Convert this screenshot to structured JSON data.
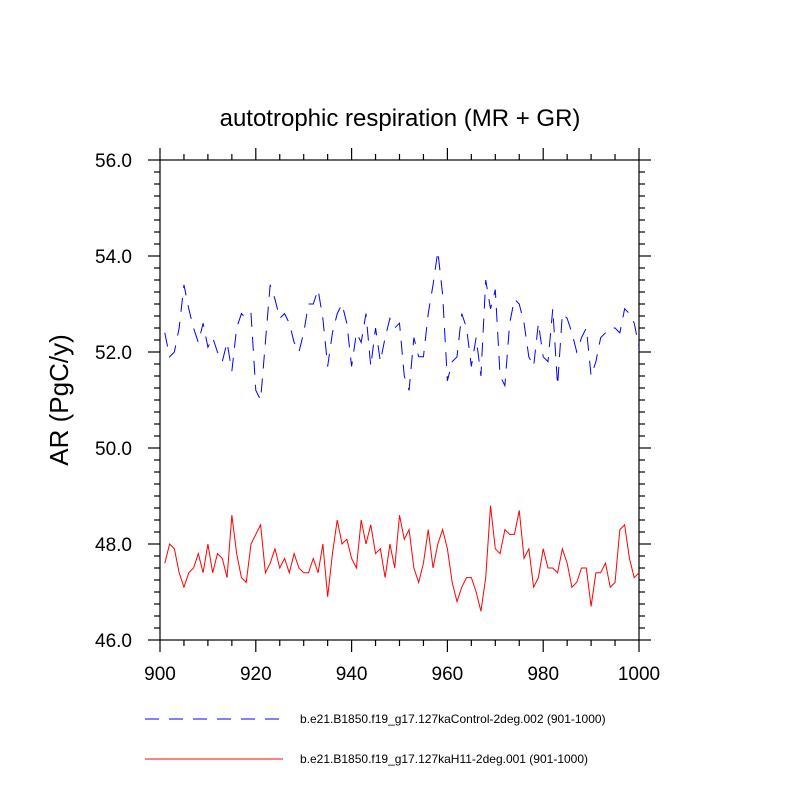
{
  "chart_data": {
    "type": "line",
    "title": "autotrophic respiration (MR + GR)",
    "xlabel": "",
    "ylabel": "AR  (PgC/y)",
    "xlim": [
      900,
      1000
    ],
    "ylim": [
      46.0,
      56.0
    ],
    "x_ticks": [
      900,
      920,
      940,
      960,
      980,
      1000
    ],
    "y_ticks": [
      46.0,
      48.0,
      50.0,
      52.0,
      54.0,
      56.0
    ],
    "x_tick_labels": [
      "900",
      "920",
      "940",
      "960",
      "980",
      "1000"
    ],
    "y_tick_labels": [
      "46.0",
      "48.0",
      "50.0",
      "52.0",
      "54.0",
      "56.0"
    ],
    "legend_position": "bottom",
    "x_start": 901,
    "series": [
      {
        "name": "b.e21.B1850.f19_g17.127kaControl-2deg.002 (901-1000)",
        "color": "#0000ff",
        "style": "dashed",
        "values": [
          52.4,
          51.9,
          52.0,
          52.5,
          53.4,
          52.9,
          52.5,
          52.2,
          52.6,
          52.1,
          52.3,
          52.0,
          51.8,
          52.2,
          51.6,
          52.5,
          52.8,
          52.7,
          52.8,
          51.2,
          51.0,
          52.2,
          53.4,
          53.1,
          52.7,
          52.8,
          52.6,
          52.2,
          52.0,
          52.4,
          53.0,
          53.0,
          53.3,
          52.7,
          51.7,
          52.4,
          52.8,
          53.0,
          52.6,
          51.7,
          52.4,
          52.2,
          52.8,
          51.7,
          52.5,
          51.8,
          52.3,
          52.7,
          52.5,
          52.6,
          51.5,
          51.2,
          52.3,
          51.9,
          51.9,
          52.8,
          53.4,
          54.1,
          53.2,
          51.4,
          51.8,
          51.9,
          52.8,
          52.5,
          51.7,
          52.3,
          51.5,
          53.5,
          52.9,
          53.3,
          51.5,
          51.3,
          52.6,
          53.1,
          53.0,
          52.6,
          51.9,
          51.7,
          52.6,
          51.9,
          51.8,
          52.9,
          51.3,
          52.8,
          52.7,
          52.4,
          52.0,
          52.3,
          52.5,
          51.5,
          51.8,
          52.3,
          52.4,
          52.5,
          52.5,
          52.4,
          52.9,
          52.8,
          52.6,
          52.1
        ]
      },
      {
        "name": "b.e21.B1850.f19_g17.127kaH11-2deg.001 (901-1000)",
        "color": "#ff0000",
        "style": "solid",
        "values": [
          47.6,
          48.0,
          47.9,
          47.4,
          47.1,
          47.4,
          47.5,
          47.8,
          47.4,
          48.0,
          47.4,
          47.8,
          47.7,
          47.3,
          48.6,
          47.8,
          47.3,
          47.2,
          48.0,
          48.2,
          48.4,
          47.4,
          47.6,
          47.9,
          47.5,
          47.7,
          47.4,
          47.8,
          47.5,
          47.4,
          47.4,
          47.7,
          47.4,
          48.0,
          46.9,
          47.8,
          48.5,
          48.0,
          48.1,
          47.7,
          47.5,
          48.5,
          48.0,
          48.4,
          47.8,
          47.9,
          47.3,
          48.0,
          47.5,
          48.6,
          48.1,
          48.3,
          47.5,
          47.2,
          47.6,
          48.3,
          47.5,
          48.0,
          48.3,
          47.9,
          47.2,
          46.8,
          47.1,
          47.3,
          47.3,
          47.0,
          46.6,
          47.3,
          48.8,
          47.9,
          47.8,
          48.3,
          48.2,
          48.2,
          48.7,
          47.7,
          47.9,
          47.1,
          47.3,
          47.9,
          47.5,
          47.5,
          47.4,
          47.9,
          47.6,
          47.1,
          47.2,
          47.5,
          47.5,
          46.7,
          47.4,
          47.4,
          47.6,
          47.1,
          47.2,
          48.3,
          48.4,
          47.7,
          47.3,
          47.4
        ]
      }
    ]
  }
}
